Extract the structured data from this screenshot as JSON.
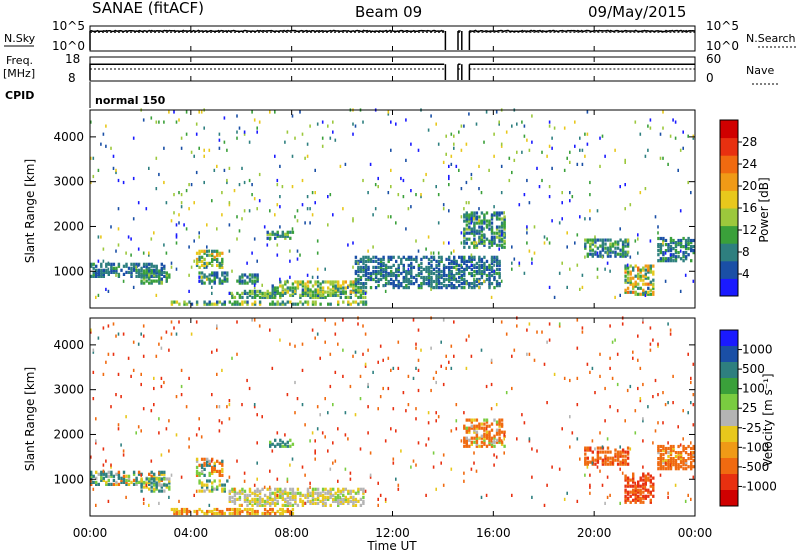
{
  "header": {
    "title": "SANAE (fitACF)",
    "beam": "Beam 09",
    "date": "09/May/2015"
  },
  "noise_panel": {
    "left_label": "N.Sky",
    "left_ticks": [
      "10^5",
      "10^0"
    ],
    "right_label": "N.Search",
    "right_ticks": [
      "10^5",
      "10^0"
    ]
  },
  "freq_panel": {
    "left_label_1": "Freq.",
    "left_label_2": "[MHz]",
    "left_ticks": [
      "18",
      "8"
    ],
    "right_label": "Nave",
    "right_ticks": [
      "60",
      "0"
    ]
  },
  "cpid": {
    "label": "CPID",
    "mode": "normal 150"
  },
  "x_axis": {
    "title": "Time UT",
    "ticks": [
      "00:00",
      "04:00",
      "08:00",
      "12:00",
      "16:00",
      "20:00",
      "00:00"
    ]
  },
  "power_panel": {
    "ylabel": "Slant Range [km]",
    "yticks": [
      "4000",
      "3000",
      "2000",
      "1000"
    ],
    "colorbar_label": "Power [dB]",
    "colorbar_ticks": [
      "28",
      "24",
      "20",
      "16",
      "12",
      "8",
      "4"
    ]
  },
  "velocity_panel": {
    "ylabel": "Slant Range [km]",
    "yticks": [
      "4000",
      "3000",
      "2000",
      "1000"
    ],
    "colorbar_label": "Velocity [m s⁻¹]",
    "colorbar_ticks": [
      "1000",
      "500",
      "100",
      "25",
      "-25",
      "-100",
      "-500",
      "-1000"
    ]
  },
  "colors": {
    "power_scale": [
      "#1a1aff",
      "#1a4fa6",
      "#2e7f7f",
      "#3aa03a",
      "#9cc83c",
      "#e8c81c",
      "#f09a16",
      "#f06a10",
      "#e83010",
      "#d00000"
    ],
    "velocity_scale": [
      "#1a1aff",
      "#1a4fa6",
      "#2e7f7f",
      "#3aa03a",
      "#7acc40",
      "#b4b4b4",
      "#e8c81c",
      "#f09a16",
      "#f06a10",
      "#e83010",
      "#d00000"
    ]
  },
  "chart_data": [
    {
      "type": "line",
      "title": "SANAE (fitACF)",
      "xlabel": "",
      "ylabel": "N.Sky",
      "x_range_hours": [
        0,
        24
      ],
      "gaps_hours": [
        [
          14.1,
          14.6
        ],
        [
          14.75,
          15.05
        ]
      ],
      "series": [
        {
          "name": "N.Sky",
          "level_fraction": 0.8
        },
        {
          "name": "N.Search",
          "level_fraction": 0.75
        }
      ]
    },
    {
      "type": "line",
      "xlabel": "",
      "ylabel": "Freq. [MHz]",
      "ylim": [
        8,
        18
      ],
      "x_range_hours": [
        0,
        24
      ],
      "series": [
        {
          "name": "Freq.",
          "level_fraction": 0.7
        },
        {
          "name": "Nave",
          "level_fraction": 0.5
        }
      ]
    },
    {
      "type": "heatmap",
      "xlabel": "Time UT",
      "ylabel": "Slant Range [km]",
      "x_range_hours": [
        0,
        24
      ],
      "ylim": [
        180,
        4600
      ],
      "value_label": "Power [dB]",
      "value_range": [
        0,
        32
      ],
      "regions": [
        {
          "t": [
            0.0,
            3.0
          ],
          "r": [
            850,
            1150
          ],
          "v": [
            4,
            10
          ]
        },
        {
          "t": [
            2.0,
            3.2
          ],
          "r": [
            700,
            1000
          ],
          "v": [
            6,
            14
          ]
        },
        {
          "t": [
            4.2,
            5.2
          ],
          "r": [
            1050,
            1450
          ],
          "v": [
            6,
            22
          ]
        },
        {
          "t": [
            4.3,
            5.4
          ],
          "r": [
            700,
            950
          ],
          "v": [
            4,
            12
          ]
        },
        {
          "t": [
            3.2,
            11.0
          ],
          "r": [
            230,
            300
          ],
          "v": [
            6,
            18
          ]
        },
        {
          "t": [
            5.5,
            10.8
          ],
          "r": [
            380,
            520
          ],
          "v": [
            6,
            16
          ]
        },
        {
          "t": [
            7.2,
            10.9
          ],
          "r": [
            500,
            760
          ],
          "v": [
            6,
            20
          ]
        },
        {
          "t": [
            10.5,
            16.2
          ],
          "r": [
            600,
            1300
          ],
          "v": [
            4,
            10
          ]
        },
        {
          "t": [
            7.0,
            8.0
          ],
          "r": [
            1700,
            1850
          ],
          "v": [
            4,
            14
          ]
        },
        {
          "t": [
            5.8,
            6.6
          ],
          "r": [
            700,
            900
          ],
          "v": [
            4,
            12
          ]
        },
        {
          "t": [
            14.8,
            16.5
          ],
          "r": [
            1500,
            2300
          ],
          "v": [
            4,
            14
          ]
        },
        {
          "t": [
            19.6,
            21.4
          ],
          "r": [
            1300,
            1700
          ],
          "v": [
            4,
            14
          ]
        },
        {
          "t": [
            21.2,
            22.4
          ],
          "r": [
            450,
            1100
          ],
          "v": [
            6,
            24
          ]
        },
        {
          "t": [
            22.5,
            24.0
          ],
          "r": [
            1200,
            1700
          ],
          "v": [
            4,
            12
          ]
        }
      ],
      "sparse_fraction": 0.07
    },
    {
      "type": "heatmap",
      "xlabel": "Time UT",
      "ylabel": "Slant Range [km]",
      "x_range_hours": [
        0,
        24
      ],
      "ylim": [
        180,
        4600
      ],
      "value_label": "Velocity [m s⁻¹]",
      "value_range": [
        -1000,
        1000
      ],
      "regions": [
        {
          "t": [
            0.0,
            3.0
          ],
          "r": [
            850,
            1150
          ],
          "v": [
            -200,
            400
          ]
        },
        {
          "t": [
            2.0,
            3.2
          ],
          "r": [
            700,
            1000
          ],
          "v": [
            -100,
            200
          ]
        },
        {
          "t": [
            4.2,
            5.2
          ],
          "r": [
            1050,
            1450
          ],
          "v": [
            -300,
            200
          ]
        },
        {
          "t": [
            4.3,
            5.4
          ],
          "r": [
            700,
            950
          ],
          "v": [
            -100,
            300
          ]
        },
        {
          "t": [
            3.2,
            8.0
          ],
          "r": [
            200,
            330
          ],
          "v": [
            -150,
            -60
          ]
        },
        {
          "t": [
            5.5,
            10.8
          ],
          "r": [
            380,
            760
          ],
          "v": [
            -60,
            40
          ]
        },
        {
          "t": [
            7.0,
            8.0
          ],
          "r": [
            1700,
            1850
          ],
          "v": [
            40,
            200
          ]
        },
        {
          "t": [
            14.8,
            16.5
          ],
          "r": [
            1700,
            2300
          ],
          "v": [
            -500,
            100
          ]
        },
        {
          "t": [
            19.6,
            21.4
          ],
          "r": [
            1300,
            1700
          ],
          "v": [
            -600,
            -100
          ]
        },
        {
          "t": [
            21.2,
            22.4
          ],
          "r": [
            450,
            1100
          ],
          "v": [
            -900,
            -200
          ]
        },
        {
          "t": [
            22.5,
            24.0
          ],
          "r": [
            1200,
            1700
          ],
          "v": [
            -500,
            0
          ]
        }
      ],
      "sparse_fraction": 0.06
    }
  ]
}
